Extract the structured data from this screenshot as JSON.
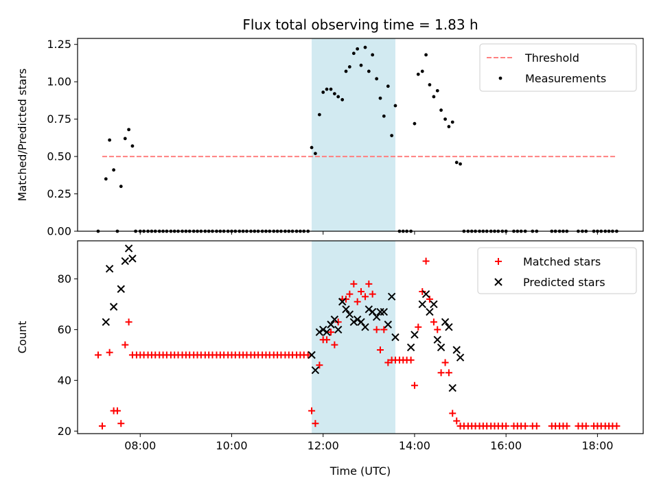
{
  "chart_data": [
    {
      "type": "scatter",
      "panel": "top",
      "title": "Flux total observing time = 1.83 h",
      "ylabel": "Matched/Predicted stars",
      "xlabel": "",
      "xlim": [
        6.63,
        19.0
      ],
      "ylim": [
        0.0,
        1.29
      ],
      "x_ticks": [
        8,
        10,
        12,
        14,
        16,
        18
      ],
      "x_tick_labels": [
        "08:00",
        "10:00",
        "12:00",
        "14:00",
        "16:00",
        "18:00"
      ],
      "y_ticks": [
        0.0,
        0.25,
        0.5,
        0.75,
        1.0,
        1.25
      ],
      "y_tick_labels": [
        "0.00",
        "0.25",
        "0.50",
        "0.75",
        "1.00",
        "1.25"
      ],
      "shaded_span": {
        "x_start": 11.75,
        "x_end": 13.58,
        "color": "#add8e6"
      },
      "legend_position": "top-right",
      "series": [
        {
          "name": "Threshold",
          "style": "dashed-line",
          "color": "#ff8080",
          "x": [
            7.17,
            18.42
          ],
          "y": [
            0.5,
            0.5
          ]
        },
        {
          "name": "Measurements",
          "style": "dot",
          "color": "#000000",
          "x": [
            7.08,
            7.25,
            7.33,
            7.42,
            7.5,
            7.58,
            7.67,
            7.75,
            7.83,
            7.9,
            8.0,
            8.08,
            8.17,
            8.25,
            8.33,
            8.42,
            8.5,
            8.58,
            8.67,
            8.75,
            8.83,
            8.92,
            9.0,
            9.08,
            9.17,
            9.25,
            9.33,
            9.42,
            9.5,
            9.58,
            9.67,
            9.75,
            9.83,
            9.92,
            10.0,
            10.08,
            10.17,
            10.25,
            10.33,
            10.42,
            10.5,
            10.58,
            10.67,
            10.75,
            10.83,
            10.92,
            11.0,
            11.08,
            11.17,
            11.25,
            11.33,
            11.42,
            11.5,
            11.58,
            11.67,
            11.75,
            11.83,
            11.92,
            12.0,
            12.08,
            12.17,
            12.25,
            12.33,
            12.42,
            12.5,
            12.58,
            12.67,
            12.75,
            12.83,
            12.92,
            13.0,
            13.08,
            13.17,
            13.25,
            13.33,
            13.42,
            13.5,
            13.58,
            13.67,
            13.75,
            13.83,
            13.92,
            14.0,
            14.08,
            14.17,
            14.25,
            14.33,
            14.42,
            14.5,
            14.58,
            14.67,
            14.75,
            14.83,
            14.92,
            15.0,
            15.08,
            15.17,
            15.25,
            15.33,
            15.42,
            15.5,
            15.58,
            15.67,
            15.75,
            15.83,
            15.92,
            16.0,
            16.17,
            16.25,
            16.33,
            16.42,
            16.58,
            16.67,
            17.0,
            17.08,
            17.17,
            17.25,
            17.33,
            17.58,
            17.67,
            17.75,
            17.92,
            18.0,
            18.08,
            18.17,
            18.25,
            18.33,
            18.42
          ],
          "y": [
            0.0,
            0.35,
            0.61,
            0.41,
            0.0,
            0.3,
            0.62,
            0.68,
            0.57,
            0.0,
            0.0,
            0.0,
            0.0,
            0.0,
            0.0,
            0.0,
            0.0,
            0.0,
            0.0,
            0.0,
            0.0,
            0.0,
            0.0,
            0.0,
            0.0,
            0.0,
            0.0,
            0.0,
            0.0,
            0.0,
            0.0,
            0.0,
            0.0,
            0.0,
            0.0,
            0.0,
            0.0,
            0.0,
            0.0,
            0.0,
            0.0,
            0.0,
            0.0,
            0.0,
            0.0,
            0.0,
            0.0,
            0.0,
            0.0,
            0.0,
            0.0,
            0.0,
            0.0,
            0.0,
            0.0,
            0.56,
            0.52,
            0.78,
            0.93,
            0.95,
            0.95,
            0.92,
            0.9,
            0.88,
            1.07,
            1.1,
            1.19,
            1.22,
            1.11,
            1.23,
            1.07,
            1.18,
            1.02,
            0.89,
            0.77,
            0.97,
            0.64,
            0.84,
            0.0,
            0.0,
            0.0,
            0.0,
            0.72,
            1.05,
            1.07,
            1.18,
            0.98,
            0.9,
            0.94,
            0.81,
            0.75,
            0.7,
            0.73,
            0.46,
            0.45,
            0.0,
            0.0,
            0.0,
            0.0,
            0.0,
            0.0,
            0.0,
            0.0,
            0.0,
            0.0,
            0.0,
            0.0,
            0.0,
            0.0,
            0.0,
            0.0,
            0.0,
            0.0,
            0.0,
            0.0,
            0.0,
            0.0,
            0.0,
            0.0,
            0.0,
            0.0,
            0.0,
            0.0,
            0.0,
            0.0,
            0.0,
            0.0,
            0.0
          ]
        }
      ]
    },
    {
      "type": "scatter",
      "panel": "bottom",
      "title": "",
      "xlabel": "Time (UTC)",
      "ylabel": "Count",
      "xlim": [
        6.63,
        19.0
      ],
      "ylim": [
        19,
        95
      ],
      "x_ticks": [
        8,
        10,
        12,
        14,
        16,
        18
      ],
      "x_tick_labels": [
        "08:00",
        "10:00",
        "12:00",
        "14:00",
        "16:00",
        "18:00"
      ],
      "y_ticks": [
        20,
        40,
        60,
        80
      ],
      "y_tick_labels": [
        "20",
        "40",
        "60",
        "80"
      ],
      "shaded_span": {
        "x_start": 11.75,
        "x_end": 13.58,
        "color": "#add8e6"
      },
      "legend_position": "top-right",
      "series": [
        {
          "name": "Matched stars",
          "style": "plus",
          "color": "#ff0000",
          "x": [
            7.08,
            7.17,
            7.33,
            7.42,
            7.5,
            7.58,
            7.67,
            7.75,
            7.83,
            7.92,
            8.0,
            8.08,
            8.17,
            8.25,
            8.33,
            8.42,
            8.5,
            8.58,
            8.67,
            8.75,
            8.83,
            8.92,
            9.0,
            9.08,
            9.17,
            9.25,
            9.33,
            9.42,
            9.5,
            9.58,
            9.67,
            9.75,
            9.83,
            9.92,
            10.0,
            10.08,
            10.17,
            10.25,
            10.33,
            10.42,
            10.5,
            10.58,
            10.67,
            10.75,
            10.83,
            10.92,
            11.0,
            11.08,
            11.17,
            11.25,
            11.33,
            11.42,
            11.5,
            11.58,
            11.67,
            11.75,
            11.83,
            11.92,
            12.0,
            12.08,
            12.17,
            12.25,
            12.33,
            12.42,
            12.5,
            12.58,
            12.67,
            12.75,
            12.83,
            12.92,
            13.0,
            13.08,
            13.17,
            13.25,
            13.33,
            13.42,
            13.5,
            13.58,
            13.67,
            13.75,
            13.83,
            13.92,
            14.0,
            14.08,
            14.17,
            14.25,
            14.33,
            14.42,
            14.5,
            14.58,
            14.67,
            14.75,
            14.83,
            14.92,
            15.0,
            15.08,
            15.17,
            15.25,
            15.33,
            15.42,
            15.5,
            15.58,
            15.67,
            15.75,
            15.83,
            15.92,
            16.0,
            16.17,
            16.25,
            16.33,
            16.42,
            16.58,
            16.67,
            17.0,
            17.08,
            17.17,
            17.25,
            17.33,
            17.58,
            17.67,
            17.75,
            17.92,
            18.0,
            18.08,
            18.17,
            18.25,
            18.33,
            18.42
          ],
          "y": [
            50,
            22,
            51,
            28,
            28,
            23,
            54,
            63,
            50,
            50,
            50,
            50,
            50,
            50,
            50,
            50,
            50,
            50,
            50,
            50,
            50,
            50,
            50,
            50,
            50,
            50,
            50,
            50,
            50,
            50,
            50,
            50,
            50,
            50,
            50,
            50,
            50,
            50,
            50,
            50,
            50,
            50,
            50,
            50,
            50,
            50,
            50,
            50,
            50,
            50,
            50,
            50,
            50,
            50,
            50,
            28,
            23,
            46,
            56,
            56,
            59,
            54,
            63,
            72,
            72,
            74,
            78,
            71,
            75,
            73,
            78,
            74,
            60,
            52,
            60,
            47,
            48,
            48,
            48,
            48,
            48,
            48,
            38,
            61,
            75,
            87,
            72,
            63,
            60,
            43,
            47,
            43,
            27,
            24,
            22,
            22,
            22,
            22,
            22,
            22,
            22,
            22,
            22,
            22,
            22,
            22,
            22,
            22,
            22,
            22,
            22,
            22,
            22,
            22,
            22,
            22,
            22,
            22,
            22,
            22,
            22,
            22,
            22,
            22,
            22,
            22,
            22,
            22
          ]
        },
        {
          "name": "Predicted stars",
          "style": "x",
          "color": "#000000",
          "x": [
            7.25,
            7.33,
            7.42,
            7.58,
            7.67,
            7.75,
            7.83,
            11.75,
            11.83,
            11.92,
            12.0,
            12.08,
            12.17,
            12.25,
            12.33,
            12.42,
            12.5,
            12.58,
            12.67,
            12.75,
            12.83,
            12.92,
            13.0,
            13.08,
            13.17,
            13.25,
            13.33,
            13.42,
            13.5,
            13.58,
            13.92,
            14.0,
            14.17,
            14.25,
            14.33,
            14.42,
            14.5,
            14.58,
            14.67,
            14.75,
            14.83,
            14.92,
            15.0
          ],
          "y": [
            63,
            84,
            69,
            76,
            87,
            92,
            88,
            50,
            44,
            59,
            60,
            59,
            62,
            64,
            60,
            71,
            68,
            66,
            63,
            64,
            63,
            61,
            68,
            67,
            65,
            67,
            67,
            62,
            73,
            57,
            53,
            58,
            70,
            74,
            67,
            70,
            56,
            53,
            63,
            61,
            37,
            52,
            49
          ]
        }
      ]
    }
  ]
}
